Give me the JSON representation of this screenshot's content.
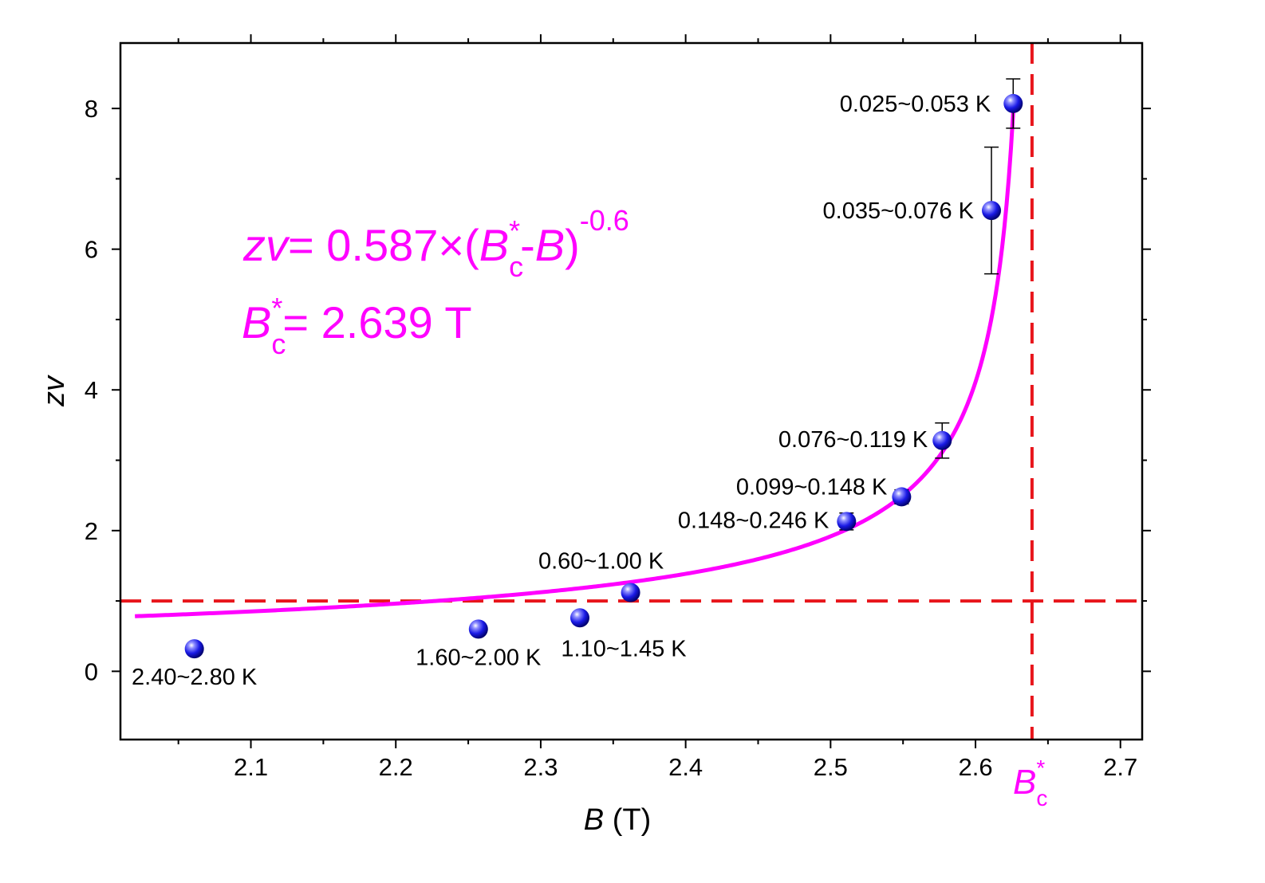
{
  "chart_data": {
    "type": "scatter",
    "xlabel_var": "B",
    "xlabel_unit": " (T)",
    "ylabel_z": "z",
    "ylabel_v": "v",
    "xlim": [
      2.01,
      2.715
    ],
    "ylim": [
      -0.97,
      8.93
    ],
    "xticks": [
      {
        "v": 2.1,
        "label": "2.1"
      },
      {
        "v": 2.2,
        "label": "2.2"
      },
      {
        "v": 2.3,
        "label": "2.3"
      },
      {
        "v": 2.4,
        "label": "2.4"
      },
      {
        "v": 2.5,
        "label": "2.5"
      },
      {
        "v": 2.6,
        "label": "2.6"
      },
      {
        "v": 2.7,
        "label": "2.7"
      }
    ],
    "yticks": [
      {
        "v": 0,
        "label": "0"
      },
      {
        "v": 2,
        "label": "2"
      },
      {
        "v": 4,
        "label": "4"
      },
      {
        "v": 6,
        "label": "6"
      },
      {
        "v": 8,
        "label": "8"
      }
    ],
    "points": [
      {
        "x": 2.061,
        "y": 0.32,
        "err": 0.05,
        "label": "2.40~2.80 K"
      },
      {
        "x": 2.257,
        "y": 0.6,
        "err": 0.05,
        "label": "1.60~2.00 K"
      },
      {
        "x": 2.327,
        "y": 0.76,
        "err": 0.05,
        "label": "1.10~1.45 K"
      },
      {
        "x": 2.362,
        "y": 1.12,
        "err": 0.06,
        "label": "0.60~1.00 K"
      },
      {
        "x": 2.511,
        "y": 2.13,
        "err": 0.12,
        "label": "0.148~0.246 K"
      },
      {
        "x": 2.549,
        "y": 2.48,
        "err": 0.1,
        "label": "0.099~0.148 K"
      },
      {
        "x": 2.577,
        "y": 3.28,
        "err": 0.25,
        "label": "0.076~0.119 K"
      },
      {
        "x": 2.611,
        "y": 6.55,
        "err": 0.9,
        "label": "0.035~0.076 K"
      },
      {
        "x": 2.626,
        "y": 8.07,
        "err": 0.35,
        "label": "0.025~0.053 K"
      }
    ],
    "fit": {
      "a": 0.587,
      "bc": 2.639,
      "exp": -0.6,
      "x_start": 2.02,
      "x_end": 2.626
    },
    "ref_lines": {
      "horizontal_y": 1.0,
      "vertical_x": 2.639
    },
    "colors": {
      "fit": "#ff00ff",
      "ref": "#e8151b",
      "marker": "#1a1ae6"
    },
    "annotation": {
      "eq_lhs_z": "z",
      "eq_lhs_v": "v",
      "eq_part1": "= 0.587×(",
      "eq_B": "B",
      "eq_sub_c": "c",
      "eq_sup_star": "*",
      "eq_minus": "-",
      "eq_B2": "B",
      "eq_close": ")",
      "eq_exp": "-0.6",
      "bc_B": "B",
      "bc_sub_c": "c",
      "bc_sup_star": "*",
      "bc_value": "= 2.639 T",
      "axis_B": "B",
      "axis_sub_c": "c",
      "axis_sup_star": "*"
    }
  }
}
